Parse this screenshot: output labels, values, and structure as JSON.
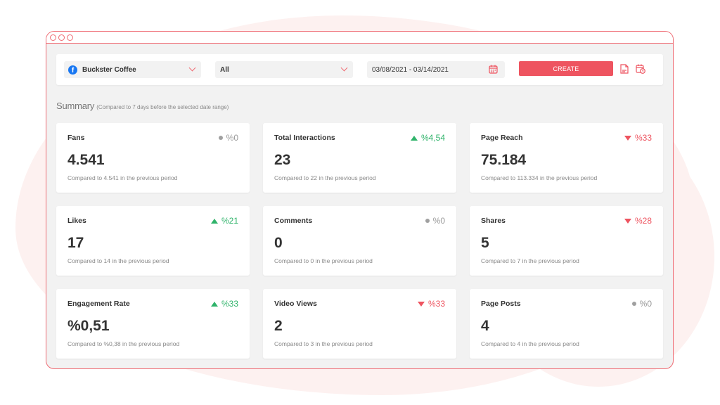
{
  "toolbar": {
    "page_select": "Buckster Coffee",
    "type_select": "All",
    "date_range": "03/08/2021 - 03/14/2021",
    "create_label": "CREATE"
  },
  "summary": {
    "title": "Summary",
    "subtitle": "(Compared to 7 days before the selected date range)"
  },
  "colors": {
    "accent": "#ee5460",
    "positive": "#2fb36a",
    "neutral": "#9a9a9a",
    "facebook": "#1877f2"
  },
  "cards": [
    {
      "title": "Fans",
      "change": "%0",
      "trend": "neutral",
      "value": "4.541",
      "compare": "Compared to 4.541 in the previous period"
    },
    {
      "title": "Total Interactions",
      "change": "%4,54",
      "trend": "up",
      "value": "23",
      "compare": "Compared to 22 in the previous period"
    },
    {
      "title": "Page Reach",
      "change": "%33",
      "trend": "down",
      "value": "75.184",
      "compare": "Compared to 113.334 in the previous period"
    },
    {
      "title": "Likes",
      "change": "%21",
      "trend": "up",
      "value": "17",
      "compare": "Compared to 14 in the previous period"
    },
    {
      "title": "Comments",
      "change": "%0",
      "trend": "neutral",
      "value": "0",
      "compare": "Compared to 0 in the previous period"
    },
    {
      "title": "Shares",
      "change": "%28",
      "trend": "down",
      "value": "5",
      "compare": "Compared to 7 in the previous period"
    },
    {
      "title": "Engagement Rate",
      "change": "%33",
      "trend": "up",
      "value": "%0,51",
      "compare": "Compared to %0,38 in the previous period"
    },
    {
      "title": "Video Views",
      "change": "%33",
      "trend": "down",
      "value": "2",
      "compare": "Compared to 3 in the previous period"
    },
    {
      "title": "Page Posts",
      "change": "%0",
      "trend": "neutral",
      "value": "4",
      "compare": "Compared to 4 in the previous period"
    }
  ]
}
